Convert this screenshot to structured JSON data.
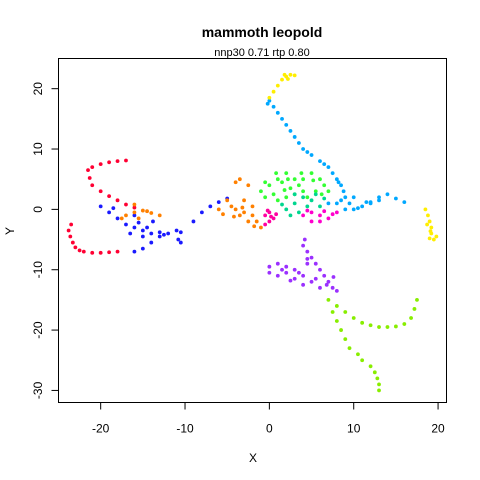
{
  "chart_data": {
    "type": "scatter",
    "title": "mammoth leopold",
    "subtitle": "nnp30 0.71 rtp 0.80",
    "xlabel": "X",
    "ylabel": "Y",
    "xlim": [
      -25,
      21
    ],
    "ylim": [
      -32,
      25
    ],
    "x_ticks": [
      -20,
      -10,
      0,
      10,
      20
    ],
    "y_ticks": [
      -30,
      -20,
      -10,
      0,
      10,
      20
    ],
    "x_tick_labels": [
      "-20",
      "-10",
      "0",
      "10",
      "20"
    ],
    "y_tick_labels": [
      "-30",
      "-20",
      "-10",
      "0",
      "10",
      "20"
    ],
    "grid": false,
    "series": [
      {
        "color": "#ff0033",
        "points": [
          [
            -18,
            8
          ],
          [
            -17,
            8.1
          ],
          [
            -19,
            7.8
          ],
          [
            -20,
            7.5
          ],
          [
            -21,
            7
          ],
          [
            -21.5,
            6.5
          ],
          [
            -21.3,
            5.2
          ],
          [
            -21,
            4
          ],
          [
            -20,
            3
          ],
          [
            -19,
            2.2
          ],
          [
            -18,
            1.5
          ],
          [
            -17,
            0.8
          ],
          [
            -16,
            0.3
          ],
          [
            -23.5,
            -2.5
          ],
          [
            -23.8,
            -3.5
          ],
          [
            -23.6,
            -4.5
          ],
          [
            -23.3,
            -5.5
          ],
          [
            -23,
            -6.3
          ],
          [
            -22.5,
            -6.8
          ],
          [
            -22,
            -7
          ],
          [
            -21,
            -7.2
          ],
          [
            -20,
            -7.2
          ],
          [
            -19,
            -7.1
          ],
          [
            -18,
            -7
          ]
        ]
      },
      {
        "color": "#1a1aff",
        "points": [
          [
            -16,
            -7
          ],
          [
            -15,
            -6.5
          ],
          [
            -14,
            -5.5
          ],
          [
            -13,
            -4.5
          ],
          [
            -12,
            -4
          ],
          [
            -11,
            -3.5
          ],
          [
            -10.5,
            -3.8
          ],
          [
            -10.8,
            -5
          ],
          [
            -14,
            -4
          ],
          [
            -15,
            -3.5
          ],
          [
            -16,
            -3
          ],
          [
            -17,
            -2.5
          ],
          [
            -18,
            -1.5
          ],
          [
            -19,
            -0.5
          ],
          [
            -20,
            0.5
          ],
          [
            -18.5,
            0.2
          ],
          [
            -16,
            -1
          ],
          [
            -15.5,
            -2.2
          ],
          [
            -13,
            -3.8
          ],
          [
            -12.5,
            -4.2
          ],
          [
            -9,
            -2
          ],
          [
            -8,
            -0.5
          ],
          [
            -7,
            0.5
          ],
          [
            -6,
            1.2
          ],
          [
            -5,
            1.8
          ],
          [
            -10.5,
            -5.5
          ],
          [
            -16.5,
            -4
          ],
          [
            -15,
            -4.5
          ],
          [
            -14.5,
            -3
          ],
          [
            -13.8,
            -2
          ]
        ]
      },
      {
        "color": "#ff8000",
        "points": [
          [
            -17,
            -1
          ],
          [
            -16,
            -0.5
          ],
          [
            -15,
            -0.2
          ],
          [
            -14,
            -0.6
          ],
          [
            -13,
            -1
          ],
          [
            -15.5,
            -1.5
          ],
          [
            -14.5,
            -0.3
          ],
          [
            -16,
            0.8
          ],
          [
            -17.5,
            -1.5
          ],
          [
            -4,
            0
          ],
          [
            -3,
            -0.5
          ],
          [
            -2,
            -1
          ],
          [
            -1.5,
            -2
          ],
          [
            -1,
            -3
          ],
          [
            -2.5,
            -2
          ],
          [
            -3.5,
            -1
          ],
          [
            -4.5,
            0.5
          ],
          [
            -5,
            1.5
          ],
          [
            -3,
            1.5
          ],
          [
            -2,
            0.5
          ],
          [
            -4,
            4.5
          ],
          [
            -3.5,
            5
          ],
          [
            -2.5,
            4
          ],
          [
            -6,
            0
          ],
          [
            -5.5,
            -0.8
          ],
          [
            -1.8,
            -2.8
          ],
          [
            -3.2,
            0.3
          ],
          [
            -4.2,
            -1.2
          ]
        ]
      },
      {
        "color": "#ff00a0",
        "points": [
          [
            -0.5,
            -1
          ],
          [
            0,
            -0.5
          ],
          [
            0.5,
            -1.5
          ],
          [
            0,
            -2
          ],
          [
            -0.5,
            -2.5
          ],
          [
            0.8,
            -0.8
          ],
          [
            0.2,
            -1.2
          ],
          [
            -0.2,
            -0.2
          ]
        ]
      },
      {
        "color": "#33ff33",
        "points": [
          [
            -1,
            3
          ],
          [
            0,
            4
          ],
          [
            1,
            5
          ],
          [
            2,
            6
          ],
          [
            3,
            5
          ],
          [
            3.5,
            4
          ],
          [
            4,
            3
          ],
          [
            2.5,
            3.5
          ],
          [
            1.5,
            4.5
          ],
          [
            -0.5,
            2
          ],
          [
            0.5,
            2.5
          ],
          [
            2,
            2
          ],
          [
            3,
            2.5
          ],
          [
            4,
            5
          ],
          [
            5,
            6
          ],
          [
            6,
            5
          ],
          [
            6.5,
            4
          ],
          [
            7,
            3
          ],
          [
            5.5,
            3
          ],
          [
            4.5,
            2
          ],
          [
            1,
            1.5
          ],
          [
            -0.5,
            4.5
          ],
          [
            0.8,
            6
          ],
          [
            2.2,
            5
          ],
          [
            3.8,
            6
          ],
          [
            5.2,
            4.8
          ],
          [
            6.2,
            2.5
          ],
          [
            1.8,
            3.2
          ]
        ]
      },
      {
        "color": "#00d68f",
        "points": [
          [
            2,
            0
          ],
          [
            3,
            1
          ],
          [
            4,
            2
          ],
          [
            5,
            1.5
          ],
          [
            6,
            0.5
          ],
          [
            3.5,
            -0.5
          ],
          [
            2.5,
            -1
          ],
          [
            4.5,
            0.5
          ],
          [
            5.5,
            2.5
          ],
          [
            6.5,
            1.8
          ],
          [
            1.5,
            0.8
          ],
          [
            3,
            2.5
          ]
        ]
      },
      {
        "color": "#00a8ff",
        "points": [
          [
            0,
            18
          ],
          [
            0.5,
            17
          ],
          [
            1,
            16
          ],
          [
            1.5,
            15
          ],
          [
            2,
            14
          ],
          [
            2.5,
            13
          ],
          [
            3,
            12
          ],
          [
            3.5,
            11
          ],
          [
            4,
            10
          ],
          [
            5,
            9
          ],
          [
            6,
            8
          ],
          [
            7,
            7
          ],
          [
            7.5,
            6
          ],
          [
            8,
            5
          ],
          [
            8.5,
            4
          ],
          [
            8.8,
            3
          ],
          [
            9,
            2
          ],
          [
            8.5,
            1.5
          ],
          [
            8,
            1
          ],
          [
            7,
            1
          ],
          [
            9,
            0
          ],
          [
            10,
            0
          ],
          [
            11,
            0.5
          ],
          [
            12,
            1
          ],
          [
            13,
            2
          ],
          [
            14,
            2.5
          ],
          [
            13,
            1.5
          ],
          [
            12,
            1.2
          ],
          [
            9.5,
            1
          ],
          [
            10,
            2
          ],
          [
            16,
            1.2
          ],
          [
            15,
            1.8
          ],
          [
            -0.2,
            17.5
          ],
          [
            4.5,
            9.5
          ],
          [
            6.5,
            7.5
          ],
          [
            8.2,
            4.5
          ],
          [
            10.5,
            0.2
          ],
          [
            11.5,
            1.2
          ]
        ]
      },
      {
        "color": "#ffee00",
        "points": [
          [
            0,
            18.5
          ],
          [
            0.5,
            19.5
          ],
          [
            1,
            20.5
          ],
          [
            1.5,
            21.5
          ],
          [
            2,
            22
          ],
          [
            2.5,
            22.3
          ],
          [
            3,
            22.2
          ],
          [
            2.2,
            21.6
          ],
          [
            1.8,
            22.3
          ],
          [
            18.5,
            0
          ],
          [
            18.8,
            -1
          ],
          [
            19,
            -2
          ],
          [
            19.2,
            -3
          ],
          [
            19.2,
            -4
          ],
          [
            19,
            -4.8
          ],
          [
            19.5,
            -5
          ],
          [
            19.8,
            -4.5
          ],
          [
            18.7,
            -2.5
          ],
          [
            19.1,
            -3.6
          ]
        ]
      },
      {
        "color": "#9b30ff",
        "points": [
          [
            4,
            -6
          ],
          [
            4.5,
            -7
          ],
          [
            5,
            -8
          ],
          [
            5.5,
            -9
          ],
          [
            6,
            -10
          ],
          [
            6.5,
            -11
          ],
          [
            7,
            -12
          ],
          [
            7.5,
            -13
          ],
          [
            8,
            -13.5
          ],
          [
            5,
            -12
          ],
          [
            4,
            -11
          ],
          [
            3,
            -10
          ],
          [
            2,
            -9.5
          ],
          [
            1,
            -9
          ],
          [
            0,
            -9.5
          ],
          [
            0,
            -10.5
          ],
          [
            1,
            -11
          ],
          [
            2,
            -10.5
          ],
          [
            3,
            -11.5
          ],
          [
            4,
            -12.5
          ],
          [
            6,
            -13
          ],
          [
            5.5,
            -11.5
          ],
          [
            3.5,
            -10.5
          ],
          [
            4.5,
            -9
          ],
          [
            4.2,
            -5
          ],
          [
            4.5,
            -8.2
          ],
          [
            6.8,
            -12.5
          ],
          [
            7.6,
            -11.2
          ],
          [
            1.5,
            -10
          ],
          [
            2.5,
            -11.8
          ]
        ]
      },
      {
        "color": "#ff00cc",
        "points": [
          [
            4,
            -1
          ],
          [
            5,
            -0.5
          ],
          [
            6,
            -1
          ],
          [
            7,
            -1.5
          ],
          [
            8,
            -0.5
          ],
          [
            6,
            -2
          ],
          [
            5,
            -2
          ],
          [
            4.5,
            -0.2
          ],
          [
            7.5,
            -0.8
          ],
          [
            6.5,
            -0.3
          ]
        ]
      },
      {
        "color": "#88ee00",
        "points": [
          [
            7,
            -15
          ],
          [
            8,
            -16
          ],
          [
            9,
            -17
          ],
          [
            10,
            -18
          ],
          [
            11,
            -18.8
          ],
          [
            12,
            -19.2
          ],
          [
            13,
            -19.5
          ],
          [
            14,
            -19.5
          ],
          [
            15,
            -19.4
          ],
          [
            16,
            -19
          ],
          [
            16.8,
            -18
          ],
          [
            17.2,
            -16.5
          ],
          [
            17.5,
            -15
          ],
          [
            7.5,
            -17
          ],
          [
            8,
            -18.5
          ],
          [
            8.5,
            -20
          ],
          [
            9,
            -21.5
          ],
          [
            9.5,
            -23
          ],
          [
            10.5,
            -24
          ],
          [
            11,
            -25
          ],
          [
            12,
            -26
          ],
          [
            12.5,
            -27
          ],
          [
            12.8,
            -28
          ],
          [
            13,
            -29
          ],
          [
            13,
            -30
          ]
        ]
      }
    ]
  }
}
